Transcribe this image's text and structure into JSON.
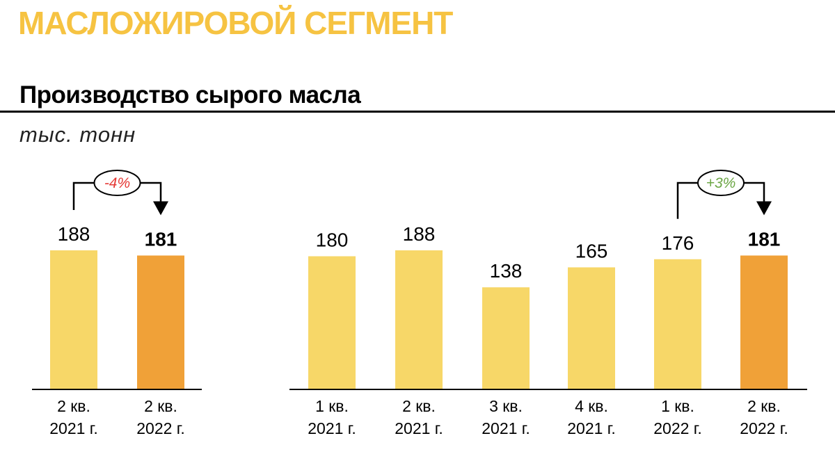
{
  "header": {
    "segment_title": "МАСЛОЖИРОВОЙ СЕГМЕНТ",
    "chart_title": "Производство сырого масла",
    "unit": "тыс. тонн"
  },
  "colors": {
    "segment_title": "#F6C342",
    "bar_light": "#F7D768",
    "bar_highlight": "#F0A138",
    "negative": "#E53935",
    "positive": "#6BA644"
  },
  "chart_data": [
    {
      "type": "bar",
      "categories": [
        [
          "2 кв.",
          "2021 г."
        ],
        [
          "2 кв.",
          "2022 г."
        ]
      ],
      "values": [
        188,
        181
      ],
      "highlight": [
        false,
        true
      ],
      "annotation": {
        "text": "-4%",
        "from": 0,
        "to": 1,
        "sentiment": "negative"
      }
    },
    {
      "type": "bar",
      "categories": [
        [
          "1 кв.",
          "2021 г."
        ],
        [
          "2 кв.",
          "2021 г."
        ],
        [
          "3 кв.",
          "2021 г."
        ],
        [
          "4 кв.",
          "2021 г."
        ],
        [
          "1 кв.",
          "2022 г."
        ],
        [
          "2 кв.",
          "2022 г."
        ]
      ],
      "values": [
        180,
        188,
        138,
        165,
        176,
        181
      ],
      "highlight": [
        false,
        false,
        false,
        false,
        false,
        true
      ],
      "annotation": {
        "text": "+3%",
        "from": 4,
        "to": 5,
        "sentiment": "positive"
      }
    }
  ]
}
